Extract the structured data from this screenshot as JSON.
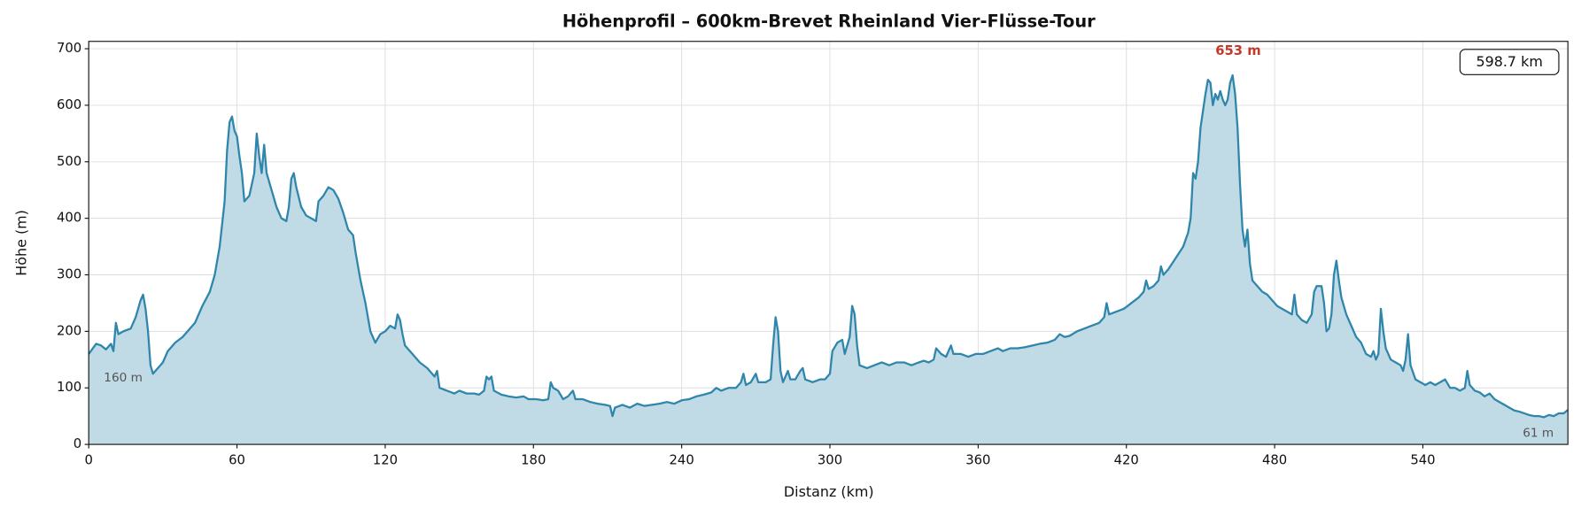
{
  "chart_data": {
    "type": "area",
    "title": "Höhenprofil – 600km-Brevet Rheinland Vier-Flüsse-Tour",
    "xlabel": "Distanz (km)",
    "ylabel": "Höhe (m)",
    "color": "#2e86ab",
    "fill": "#c0dbe6",
    "grid": true,
    "xlim": [
      0,
      598.7
    ],
    "ylim": [
      0,
      713
    ],
    "xticks": [
      0,
      60,
      120,
      180,
      240,
      300,
      360,
      420,
      480,
      540
    ],
    "yticks": [
      0,
      100,
      200,
      300,
      400,
      500,
      600,
      700
    ],
    "annotations": [
      "653 m",
      "160 m",
      "61 m",
      "598.7 km"
    ],
    "x": [
      0,
      3,
      5,
      7,
      9,
      10,
      11,
      12,
      14,
      17,
      19,
      21,
      22,
      23,
      24,
      25,
      26,
      28,
      30,
      32,
      35,
      38,
      40,
      43,
      46,
      49,
      51,
      53,
      55,
      56,
      57,
      58,
      59,
      60,
      61,
      62,
      63,
      65,
      67,
      68,
      69,
      70,
      71,
      72,
      74,
      76,
      78,
      80,
      81,
      82,
      83,
      84,
      86,
      88,
      90,
      92,
      93,
      95,
      97,
      99,
      101,
      103,
      105,
      107,
      108,
      110,
      112,
      114,
      116,
      118,
      120,
      122,
      124,
      125,
      126,
      127,
      128,
      131,
      134,
      137,
      140,
      141,
      142,
      145,
      148,
      150,
      153,
      156,
      158,
      160,
      161,
      162,
      163,
      164,
      167,
      170,
      173,
      176,
      178,
      181,
      184,
      186,
      187,
      188,
      190,
      192,
      194,
      196,
      197,
      200,
      203,
      206,
      209,
      211,
      212,
      213,
      216,
      219,
      222,
      225,
      228,
      231,
      234,
      237,
      240,
      243,
      246,
      249,
      252,
      254,
      256,
      259,
      262,
      264,
      265,
      266,
      268,
      270,
      271,
      274,
      276,
      277,
      278,
      279,
      280,
      281,
      283,
      284,
      286,
      288,
      289,
      290,
      293,
      296,
      298,
      300,
      301,
      303,
      305,
      306,
      308,
      309,
      310,
      311,
      312,
      315,
      318,
      321,
      324,
      327,
      330,
      333,
      336,
      338,
      340,
      342,
      343,
      345,
      347,
      349,
      350,
      353,
      356,
      359,
      362,
      365,
      368,
      370,
      373,
      376,
      379,
      382,
      385,
      388,
      391,
      393,
      395,
      397,
      400,
      403,
      406,
      409,
      411,
      412,
      413,
      416,
      419,
      422,
      425,
      427,
      428,
      429,
      431,
      433,
      434,
      435,
      437,
      440,
      443,
      445,
      446,
      447,
      448,
      449,
      450,
      451,
      452,
      453,
      454,
      455,
      456,
      457,
      458,
      459,
      460,
      461,
      462,
      463,
      464,
      465,
      466,
      467,
      468,
      469,
      470,
      471,
      473,
      475,
      477,
      479,
      481,
      483,
      485,
      487,
      488,
      489,
      491,
      493,
      495,
      496,
      497,
      499,
      500,
      501,
      502,
      503,
      504,
      505,
      506,
      507,
      509,
      511,
      513,
      515,
      517,
      519,
      520,
      521,
      522,
      523,
      524,
      525,
      527,
      529,
      531,
      532,
      533,
      534,
      535,
      537,
      539,
      541,
      543,
      545,
      547,
      549,
      551,
      553,
      555,
      557,
      558,
      559,
      561,
      563,
      565,
      567,
      569,
      571,
      573,
      575,
      577,
      579,
      581,
      583,
      585,
      587,
      589,
      591,
      593,
      595,
      597,
      598.7
    ],
    "values": [
      160,
      178,
      175,
      168,
      178,
      165,
      215,
      195,
      200,
      205,
      225,
      255,
      265,
      240,
      200,
      140,
      125,
      135,
      145,
      165,
      180,
      190,
      200,
      215,
      245,
      270,
      300,
      350,
      430,
      520,
      570,
      580,
      555,
      545,
      510,
      480,
      430,
      440,
      480,
      550,
      510,
      480,
      530,
      480,
      450,
      420,
      400,
      395,
      420,
      470,
      480,
      455,
      420,
      405,
      400,
      395,
      430,
      440,
      455,
      450,
      435,
      410,
      380,
      370,
      340,
      290,
      250,
      200,
      180,
      195,
      200,
      210,
      205,
      230,
      220,
      195,
      175,
      160,
      145,
      135,
      120,
      130,
      100,
      95,
      90,
      95,
      90,
      90,
      88,
      95,
      120,
      115,
      120,
      95,
      88,
      85,
      83,
      85,
      80,
      80,
      78,
      80,
      110,
      100,
      95,
      80,
      85,
      95,
      80,
      80,
      75,
      72,
      70,
      68,
      50,
      65,
      70,
      65,
      72,
      68,
      70,
      72,
      75,
      72,
      78,
      80,
      85,
      88,
      92,
      100,
      95,
      100,
      100,
      110,
      125,
      105,
      110,
      125,
      110,
      110,
      115,
      175,
      225,
      200,
      130,
      110,
      130,
      115,
      115,
      130,
      135,
      115,
      110,
      115,
      115,
      125,
      165,
      180,
      185,
      160,
      190,
      245,
      230,
      175,
      140,
      135,
      140,
      145,
      140,
      145,
      145,
      140,
      145,
      148,
      145,
      150,
      170,
      160,
      155,
      175,
      160,
      160,
      155,
      160,
      160,
      165,
      170,
      165,
      170,
      170,
      172,
      175,
      178,
      180,
      185,
      195,
      190,
      192,
      200,
      205,
      210,
      215,
      225,
      250,
      230,
      235,
      240,
      250,
      260,
      270,
      290,
      275,
      280,
      290,
      315,
      300,
      310,
      330,
      350,
      375,
      400,
      480,
      470,
      500,
      560,
      590,
      620,
      645,
      640,
      600,
      620,
      610,
      625,
      610,
      600,
      610,
      640,
      653,
      620,
      560,
      460,
      380,
      350,
      380,
      320,
      290,
      280,
      270,
      265,
      255,
      245,
      240,
      235,
      230,
      265,
      230,
      220,
      215,
      230,
      270,
      280,
      280,
      250,
      200,
      205,
      230,
      300,
      325,
      290,
      260,
      230,
      210,
      190,
      180,
      160,
      155,
      165,
      150,
      160,
      240,
      200,
      170,
      150,
      145,
      140,
      130,
      150,
      195,
      140,
      115,
      110,
      105,
      110,
      105,
      110,
      115,
      100,
      100,
      95,
      100,
      130,
      105,
      95,
      92,
      85,
      90,
      80,
      75,
      70,
      65,
      60,
      58,
      55,
      52,
      50,
      50,
      48,
      52,
      50,
      55,
      55,
      61
    ]
  }
}
